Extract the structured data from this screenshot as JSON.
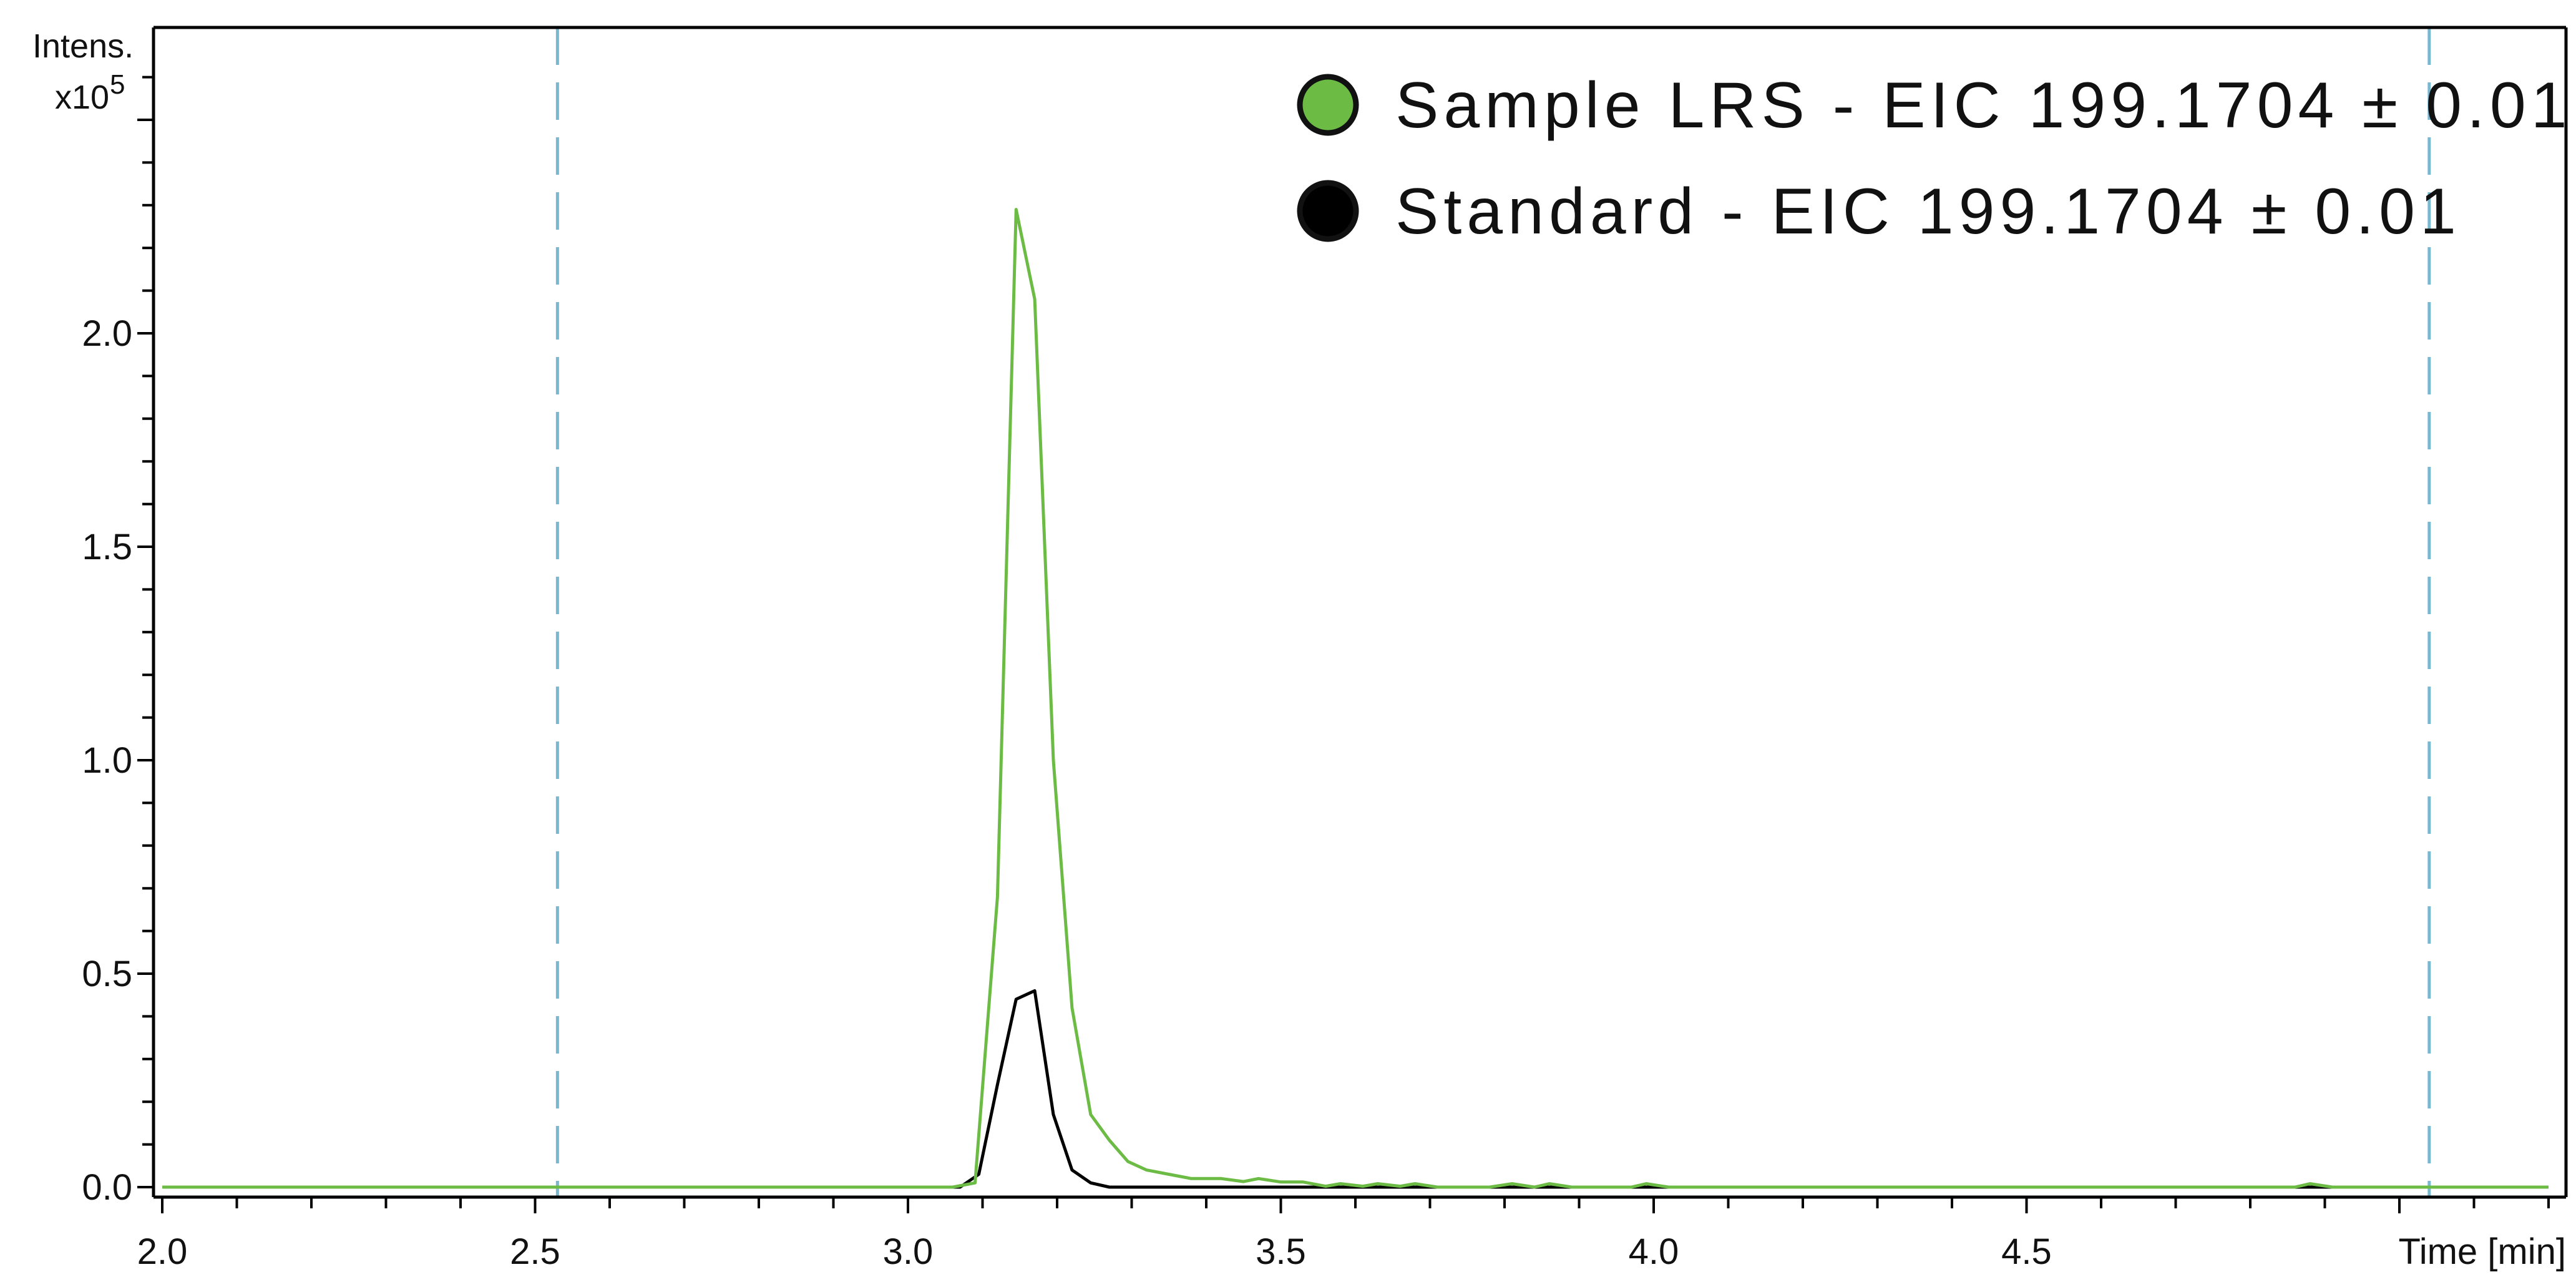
{
  "chart_data": {
    "type": "line",
    "ylabel": "Intens.",
    "y_multiplier_base": "x10",
    "y_multiplier_exp": "5",
    "xlabel": "Time [min]",
    "xlim": [
      2.0,
      5.2
    ],
    "ylim": [
      0.0,
      2.5
    ],
    "x_ticks": [
      2.0,
      2.5,
      3.0,
      3.5,
      4.0,
      4.5
    ],
    "x_tick_labels": [
      "2.0",
      "2.5",
      "3.0",
      "3.5",
      "4.0",
      "4.5"
    ],
    "y_ticks": [
      0.0,
      0.5,
      1.0,
      1.5,
      2.0
    ],
    "y_tick_labels": [
      "0.0",
      "0.5",
      "1.0",
      "1.5",
      "2.0"
    ],
    "grid": false,
    "legend_position": "top-right",
    "vertical_markers": [
      2.53,
      5.04
    ],
    "series": [
      {
        "name": "Sample LRS - EIC 199.1704 ± 0.01",
        "color": "#6cbb45",
        "x": [
          2.0,
          3.06,
          3.09,
          3.12,
          3.145,
          3.17,
          3.195,
          3.22,
          3.245,
          3.27,
          3.295,
          3.32,
          3.35,
          3.38,
          3.42,
          3.45,
          3.47,
          3.5,
          3.53,
          3.56,
          3.58,
          3.61,
          3.63,
          3.66,
          3.68,
          3.71,
          3.78,
          3.81,
          3.84,
          3.86,
          3.89,
          3.97,
          3.99,
          4.02,
          4.86,
          4.88,
          4.91,
          5.2
        ],
        "y": [
          0.0,
          0.0,
          0.01,
          0.68,
          2.29,
          2.08,
          1.0,
          0.42,
          0.17,
          0.11,
          0.06,
          0.04,
          0.03,
          0.02,
          0.02,
          0.013,
          0.02,
          0.012,
          0.012,
          0.002,
          0.008,
          0.002,
          0.008,
          0.002,
          0.008,
          0.0,
          0.0,
          0.008,
          0.0,
          0.008,
          0.0,
          0.0,
          0.008,
          0.0,
          0.0,
          0.008,
          0.0,
          0.0
        ]
      },
      {
        "name": "Standard - EIC 199.1704 ± 0.01",
        "color": "#000000",
        "x": [
          2.0,
          3.07,
          3.095,
          3.12,
          3.145,
          3.17,
          3.195,
          3.22,
          3.245,
          3.27,
          3.3,
          5.2
        ],
        "y": [
          0.0,
          0.0,
          0.03,
          0.24,
          0.44,
          0.46,
          0.17,
          0.04,
          0.01,
          0.0,
          0.0,
          0.0
        ]
      }
    ]
  },
  "colors": {
    "axis": "#000000",
    "marker": "#7ab8d0"
  }
}
